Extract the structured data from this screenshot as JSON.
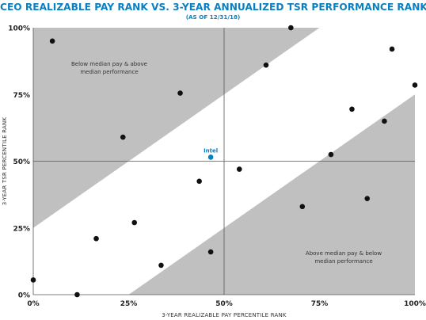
{
  "chart_data": {
    "type": "scatter",
    "title": "CEO REALIZABLE PAY RANK VS. 3-YEAR ANNUALIZED TSR PERFORMANCE RANK",
    "subtitle": "(AS OF 12/31/18)",
    "xlabel": "3-YEAR REALIZABLE PAY PERCENTILE  RANK",
    "ylabel": "3-YEAR TSR PERCENTILE RANK",
    "xlim": [
      0,
      100
    ],
    "ylim": [
      0,
      100
    ],
    "x_ticks": [
      "0%",
      "25%",
      "50%",
      "75%",
      "100%"
    ],
    "y_ticks": [
      "0%",
      "25%",
      "50%",
      "75%",
      "100%"
    ],
    "grid": false,
    "median_lines": [
      50,
      50
    ],
    "regions": [
      {
        "name": "upper-band",
        "label": "Below median pay & above median performance",
        "label_lines": [
          "Below median pay & above",
          "median performance"
        ],
        "color": "#c0c0c1"
      },
      {
        "name": "lower-band",
        "label": "Above median pay & below median performance",
        "label_lines": [
          "Above median pay & below",
          "median performance"
        ],
        "color": "#c0c0c1"
      }
    ],
    "point_color": "#111111",
    "highlight_color": "#0a7fc1",
    "points": [
      {
        "x": 0,
        "y": 5.5
      },
      {
        "x": 5,
        "y": 95
      },
      {
        "x": 11.5,
        "y": 0
      },
      {
        "x": 16.5,
        "y": 21
      },
      {
        "x": 23.5,
        "y": 59
      },
      {
        "x": 26.5,
        "y": 27
      },
      {
        "x": 33.5,
        "y": 11
      },
      {
        "x": 38.5,
        "y": 75.5
      },
      {
        "x": 43.5,
        "y": 42.5
      },
      {
        "x": 46.5,
        "y": 51.5,
        "label": "Intel",
        "highlight": true
      },
      {
        "x": 46.5,
        "y": 16
      },
      {
        "x": 54,
        "y": 47
      },
      {
        "x": 61,
        "y": 86
      },
      {
        "x": 67.5,
        "y": 100
      },
      {
        "x": 70.5,
        "y": 33
      },
      {
        "x": 78,
        "y": 52.5
      },
      {
        "x": 83.5,
        "y": 69.5
      },
      {
        "x": 87.5,
        "y": 36
      },
      {
        "x": 92,
        "y": 65
      },
      {
        "x": 94,
        "y": 92
      },
      {
        "x": 100,
        "y": 78.5
      }
    ]
  }
}
